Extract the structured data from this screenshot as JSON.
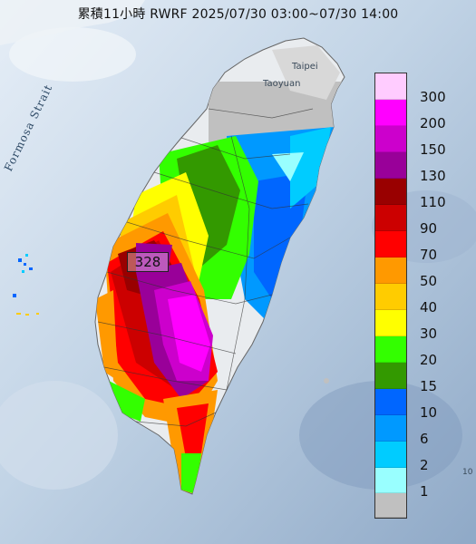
{
  "title": "累積11小時 RWRF 2025/07/30 03:00~07/30 14:00",
  "map": {
    "strait_label": "Formosa Strait",
    "places": [
      "Taipei",
      "Taoyuan"
    ],
    "max_value": "328",
    "edge_mark": "10"
  },
  "legend": {
    "items": [
      {
        "label": "300",
        "color": "#ffccff"
      },
      {
        "label": "200",
        "color": "#ff00ff"
      },
      {
        "label": "150",
        "color": "#cc00cc"
      },
      {
        "label": "130",
        "color": "#990099"
      },
      {
        "label": "110",
        "color": "#990000"
      },
      {
        "label": "90",
        "color": "#cc0000"
      },
      {
        "label": "70",
        "color": "#ff0000"
      },
      {
        "label": "50",
        "color": "#ff9900"
      },
      {
        "label": "40",
        "color": "#ffcc00"
      },
      {
        "label": "30",
        "color": "#ffff00"
      },
      {
        "label": "20",
        "color": "#33ff00"
      },
      {
        "label": "15",
        "color": "#339900"
      },
      {
        "label": "10",
        "color": "#0066ff"
      },
      {
        "label": "6",
        "color": "#0099ff"
      },
      {
        "label": "2",
        "color": "#00ccff"
      },
      {
        "label": "1",
        "color": "#99ffff"
      },
      {
        "label": "",
        "color": "#c0c0c0"
      }
    ]
  }
}
